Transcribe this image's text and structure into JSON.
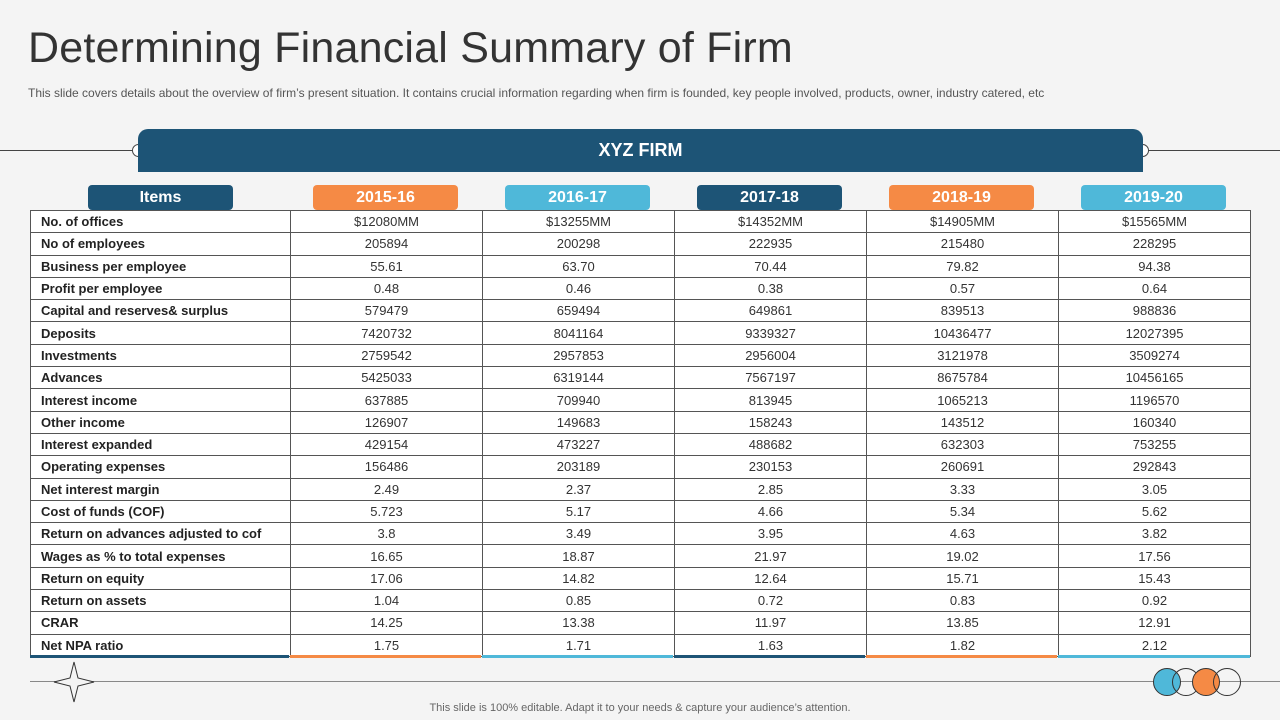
{
  "title": "Determining Financial Summary of Firm",
  "subtitle": "This slide covers details about the overview  of firm’s present situation. It contains crucial information  regarding when firm is founded,  key people involved,  products, owner, industry catered, etc",
  "firm_name": "XYZ FIRM",
  "colors": {
    "navy": "#1d5476",
    "orange": "#f58a45",
    "light_blue": "#4fb8d9",
    "border": "#555555"
  },
  "headers": [
    "Items",
    "2015-16",
    "2016-17",
    "2017-18",
    "2018-19",
    "2019-20"
  ],
  "rows": [
    {
      "label": "No. of offices",
      "values": [
        "$12080MM",
        "$13255MM",
        "$14352MM",
        "$14905MM",
        "$15565MM"
      ]
    },
    {
      "label": "No of employees",
      "values": [
        "205894",
        "200298",
        "222935",
        "215480",
        "228295"
      ]
    },
    {
      "label": "Business  per employee",
      "values": [
        "55.61",
        "63.70",
        "70.44",
        "79.82",
        "94.38"
      ]
    },
    {
      "label": "Profit per employee",
      "values": [
        "0.48",
        "0.46",
        "0.38",
        "0.57",
        "0.64"
      ]
    },
    {
      "label": "Capital and reserves& surplus",
      "values": [
        "579479",
        "659494",
        "649861",
        "839513",
        "988836"
      ]
    },
    {
      "label": "Deposits",
      "values": [
        "7420732",
        "8041164",
        "9339327",
        "10436477",
        "12027395"
      ]
    },
    {
      "label": "Investments",
      "values": [
        "2759542",
        "2957853",
        "2956004",
        "3121978",
        "3509274"
      ]
    },
    {
      "label": "Advances",
      "values": [
        "5425033",
        "6319144",
        "7567197",
        "8675784",
        "10456165"
      ]
    },
    {
      "label": "Interest income",
      "values": [
        "637885",
        "709940",
        "813945",
        "1065213",
        "1196570"
      ]
    },
    {
      "label": "Other income",
      "values": [
        "126907",
        "149683",
        "158243",
        "143512",
        "160340"
      ]
    },
    {
      "label": "Interest expanded",
      "values": [
        "429154",
        "473227",
        "488682",
        "632303",
        "753255"
      ]
    },
    {
      "label": "Operating expenses",
      "values": [
        "156486",
        "203189",
        "230153",
        "260691",
        "292843"
      ]
    },
    {
      "label": "Net interest margin",
      "values": [
        "2.49",
        "2.37",
        "2.85",
        "3.33",
        "3.05"
      ]
    },
    {
      "label": "Cost of funds (COF)",
      "values": [
        "5.723",
        "5.17",
        "4.66",
        "5.34",
        "5.62"
      ]
    },
    {
      "label": "Return on advances adjusted to cof",
      "values": [
        "3.8",
        "3.49",
        "3.95",
        "4.63",
        "3.82"
      ]
    },
    {
      "label": "Wages as % to total expenses",
      "values": [
        "16.65",
        "18.87",
        "21.97",
        "19.02",
        "17.56"
      ]
    },
    {
      "label": "Return on equity",
      "values": [
        "17.06",
        "14.82",
        "12.64",
        "15.71",
        "15.43"
      ]
    },
    {
      "label": "Return on assets",
      "values": [
        "1.04",
        "0.85",
        "0.72",
        "0.83",
        "0.92"
      ]
    },
    {
      "label": "CRAR",
      "values": [
        "14.25",
        "13.38",
        "11.97",
        "13.85",
        "12.91"
      ]
    },
    {
      "label": "Net NPA ratio",
      "values": [
        "1.75",
        "1.71",
        "1.63",
        "1.82",
        "2.12"
      ]
    }
  ],
  "footer": "This slide is 100% editable.  Adapt it to your needs & capture your audience’s attention.",
  "decorations": {
    "star": "four-point-star-icon",
    "circles": "overlapping-circles-icon"
  }
}
